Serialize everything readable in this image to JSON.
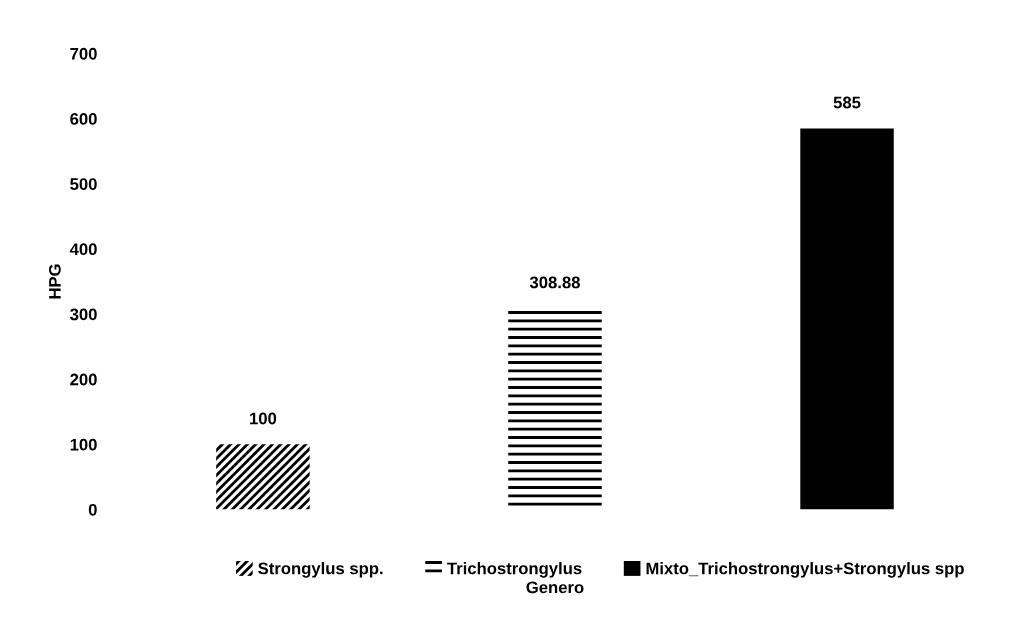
{
  "chart_data": {
    "type": "bar",
    "xlabel": "Genero",
    "ylabel": "HPG",
    "categories": [
      "Strongylus spp.",
      "Trichostrongylus",
      "Mixto_Trichostrongylus+Strongylus spp"
    ],
    "values": [
      100,
      308.88,
      585
    ],
    "colors": [
      "#000000",
      "#000000",
      "#000000"
    ],
    "ylim": [
      0,
      700
    ],
    "yticks": [
      0,
      100,
      200,
      300,
      400,
      500,
      600,
      700
    ],
    "tick_labels": "y",
    "data_labels": true,
    "grid": false
  }
}
